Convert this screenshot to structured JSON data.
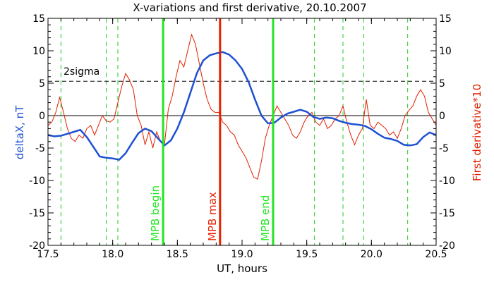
{
  "chart_data": {
    "type": "line",
    "title": "X-variations and first derivative, 20.10.2007",
    "xlabel": "UT, hours",
    "ylabel_left": "deltaX, nT",
    "ylabel_right": "First derivative*10",
    "xlim": [
      17.5,
      20.5
    ],
    "ylim": [
      -20,
      15
    ],
    "ylim_right": [
      -20,
      15
    ],
    "x_ticks": [
      "17.5",
      "18.0",
      "18.5",
      "19.0",
      "19.5",
      "20.0",
      "20.5"
    ],
    "x_tick_values": [
      17.5,
      18.0,
      18.5,
      19.0,
      19.5,
      20.0,
      20.5
    ],
    "y_ticks": [
      "15",
      "10",
      "5",
      "0",
      "-5",
      "-10",
      "-15",
      "-20"
    ],
    "y_tick_values": [
      15,
      10,
      5,
      0,
      -5,
      -10,
      -15,
      -20
    ],
    "grid": false,
    "colors": {
      "deltaX": "#1e50d2",
      "derivative": "#e02000",
      "mpb_edges": "#22e622",
      "mpb_max": "#e82000",
      "dashed_green": "#22cc22",
      "axis_right_label": "#e02000",
      "axis_left_label": "#1e50d2"
    },
    "threshold": {
      "label": "2sigma",
      "y": 5.3
    },
    "zero_line": {
      "y": 0
    },
    "green_dashed_lines": [
      17.6,
      17.95,
      18.04,
      19.56,
      19.78,
      19.94,
      20.28
    ],
    "vertical_markers": [
      {
        "label": "MPB begin",
        "x": 18.39,
        "color": "#22e622"
      },
      {
        "label": "MPB max",
        "x": 18.83,
        "color": "#e82000"
      },
      {
        "label": "MPB end",
        "x": 19.24,
        "color": "#22e622"
      }
    ],
    "series": [
      {
        "key": "deltaX",
        "x": [
          17.5,
          17.55,
          17.6,
          17.65,
          17.7,
          17.75,
          17.8,
          17.85,
          17.9,
          17.95,
          18.0,
          18.05,
          18.1,
          18.15,
          18.2,
          18.25,
          18.3,
          18.35,
          18.4,
          18.45,
          18.5,
          18.55,
          18.6,
          18.65,
          18.7,
          18.75,
          18.8,
          18.85,
          18.9,
          18.95,
          19.0,
          19.05,
          19.1,
          19.15,
          19.2,
          19.25,
          19.3,
          19.35,
          19.4,
          19.45,
          19.5,
          19.55,
          19.6,
          19.65,
          19.7,
          19.75,
          19.8,
          19.85,
          19.9,
          19.95,
          20.0,
          20.05,
          20.1,
          20.15,
          20.2,
          20.25,
          20.3,
          20.35,
          20.4,
          20.45,
          20.5
        ],
        "y": [
          -3.0,
          -3.2,
          -3.1,
          -2.8,
          -2.5,
          -2.2,
          -3.3,
          -4.8,
          -6.3,
          -6.5,
          -6.6,
          -6.8,
          -5.8,
          -4.2,
          -2.7,
          -2.0,
          -2.4,
          -3.5,
          -4.6,
          -3.8,
          -2.0,
          0.5,
          3.5,
          6.5,
          8.5,
          9.3,
          9.6,
          9.8,
          9.4,
          8.5,
          7.2,
          5.2,
          2.5,
          0.0,
          -1.2,
          -1.1,
          -0.3,
          0.3,
          0.6,
          0.9,
          0.6,
          -0.2,
          -0.5,
          -0.3,
          -0.4,
          -0.8,
          -1.1,
          -1.3,
          -1.4,
          -1.6,
          -2.1,
          -2.8,
          -3.4,
          -3.6,
          -3.9,
          -4.5,
          -4.6,
          -4.4,
          -3.3,
          -2.6,
          -3.0
        ]
      },
      {
        "key": "derivative",
        "x": [
          17.5,
          17.53,
          17.56,
          17.59,
          17.62,
          17.65,
          17.68,
          17.71,
          17.74,
          17.77,
          17.8,
          17.83,
          17.86,
          17.89,
          17.92,
          17.95,
          17.98,
          18.01,
          18.04,
          18.07,
          18.1,
          18.13,
          18.16,
          18.19,
          18.22,
          18.25,
          18.28,
          18.31,
          18.34,
          18.37,
          18.4,
          18.43,
          18.46,
          18.49,
          18.52,
          18.55,
          18.58,
          18.61,
          18.64,
          18.67,
          18.7,
          18.73,
          18.76,
          18.79,
          18.82,
          18.85,
          18.88,
          18.91,
          18.94,
          18.97,
          19.0,
          19.03,
          19.06,
          19.09,
          19.12,
          19.15,
          19.18,
          19.21,
          19.24,
          19.27,
          19.3,
          19.33,
          19.36,
          19.39,
          19.42,
          19.45,
          19.48,
          19.51,
          19.54,
          19.57,
          19.6,
          19.63,
          19.66,
          19.69,
          19.72,
          19.75,
          19.78,
          19.81,
          19.84,
          19.87,
          19.9,
          19.93,
          19.96,
          19.99,
          20.02,
          20.05,
          20.08,
          20.11,
          20.14,
          20.17,
          20.2,
          20.23,
          20.26,
          20.29,
          20.32,
          20.35,
          20.38,
          20.41,
          20.44,
          20.47,
          20.5
        ],
        "y": [
          -1.5,
          -1.0,
          0.5,
          2.8,
          0.5,
          -2.0,
          -3.5,
          -4.0,
          -3.0,
          -3.5,
          -2.0,
          -1.5,
          -3.0,
          -1.5,
          0.0,
          -0.8,
          -1.0,
          -0.5,
          2.0,
          4.5,
          6.5,
          5.5,
          4.0,
          0.0,
          -1.5,
          -4.5,
          -2.5,
          -5.0,
          -2.5,
          -4.0,
          -4.5,
          1.0,
          3.0,
          6.0,
          8.5,
          7.5,
          10.0,
          12.5,
          11.0,
          8.0,
          5.0,
          2.5,
          1.0,
          0.5,
          0.5,
          -1.0,
          -1.5,
          -2.5,
          -3.0,
          -4.5,
          -5.5,
          -6.5,
          -8.0,
          -9.5,
          -9.8,
          -7.0,
          -3.5,
          -1.5,
          0.0,
          1.5,
          0.5,
          -0.5,
          -1.5,
          -3.0,
          -3.5,
          -2.5,
          -1.0,
          0.0,
          0.5,
          -1.0,
          -1.5,
          -0.5,
          -2.0,
          -1.5,
          -0.5,
          0.0,
          1.5,
          -1.0,
          -3.0,
          -4.5,
          -3.0,
          -2.0,
          2.5,
          -1.5,
          -2.0,
          -1.0,
          -1.5,
          -2.0,
          -3.0,
          -2.5,
          -3.5,
          -2.0,
          0.0,
          0.8,
          1.5,
          3.0,
          4.0,
          3.0,
          0.5,
          -0.5,
          -1.5
        ]
      }
    ]
  }
}
